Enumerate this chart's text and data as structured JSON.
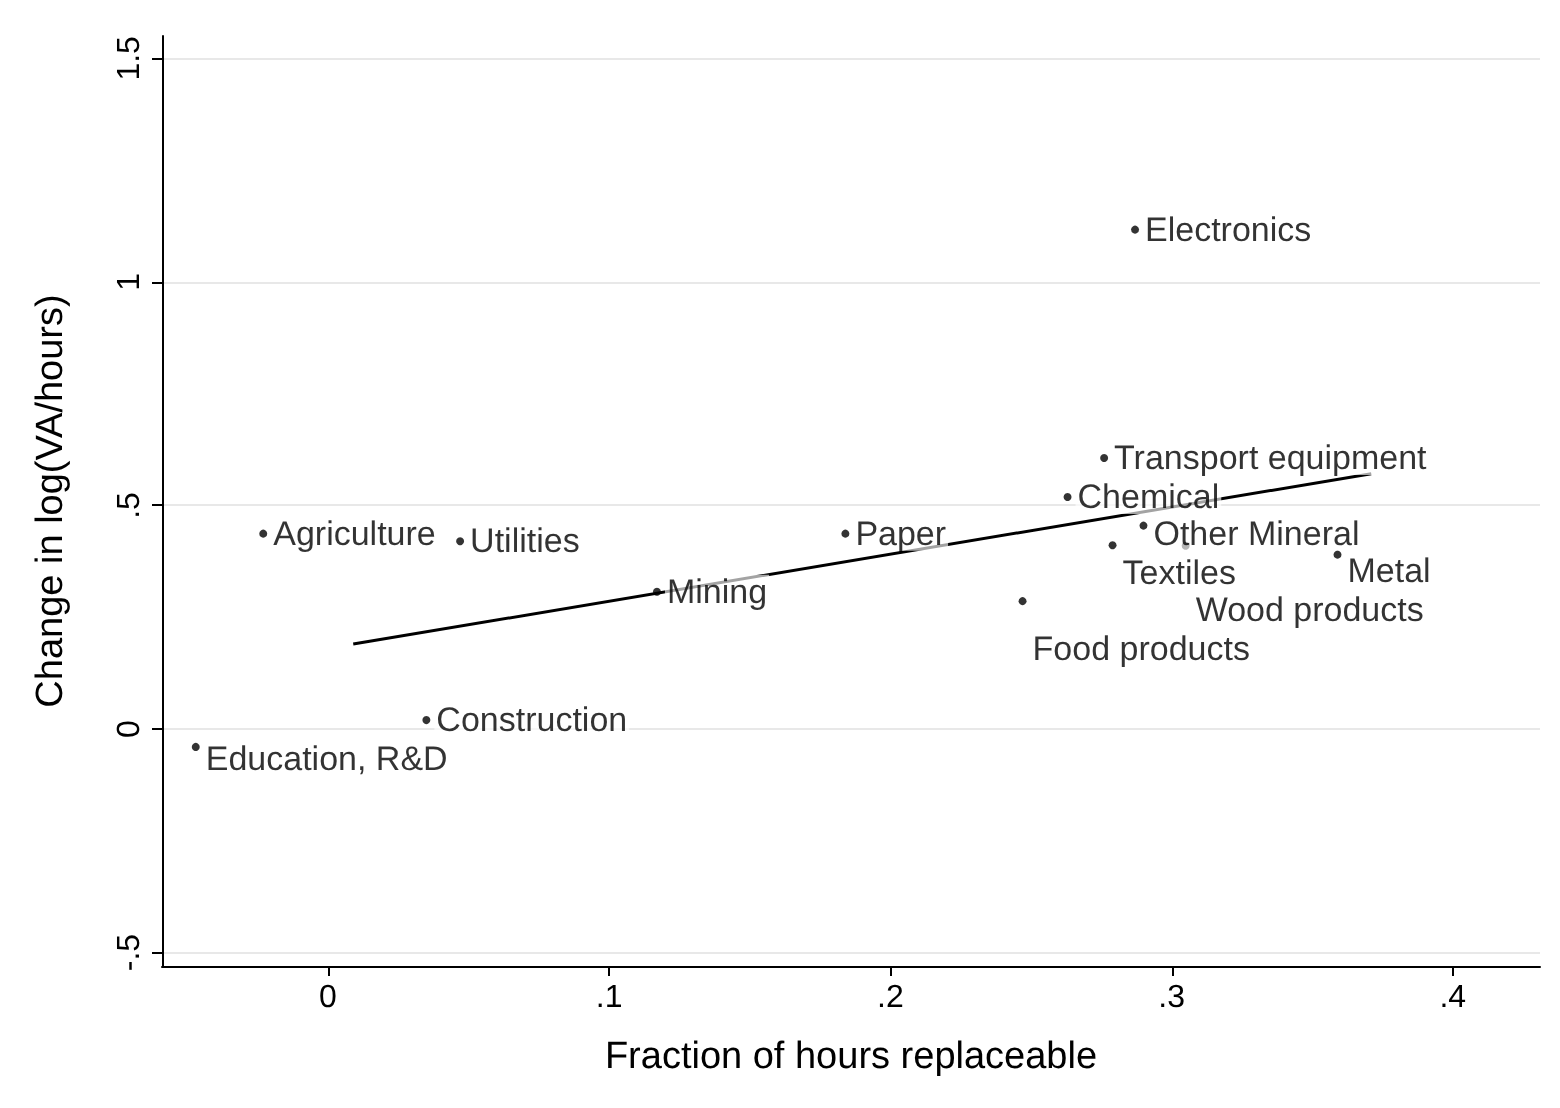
{
  "chart_data": {
    "type": "scatter",
    "xlabel": "Fraction of hours replaceable",
    "ylabel": "Change in log(VA/hours)",
    "xlim": [
      -0.059,
      0.431
    ],
    "ylim": [
      -0.53,
      1.55
    ],
    "xticks": [
      0,
      {
        "value": 0.1,
        "label": ".1"
      },
      {
        "value": 0.2,
        "label": ".2"
      },
      {
        "value": 0.3,
        "label": ".3"
      },
      {
        "value": 0.4,
        "label": ".4"
      }
    ],
    "yticks": [
      {
        "value": -0.5,
        "label": "-.5"
      },
      0,
      {
        "value": 0.5,
        "label": ".5"
      },
      1,
      1.5
    ],
    "grid": "y",
    "series": [
      {
        "marker": "circle",
        "color": "#000000",
        "x": [
          0.287,
          0.276,
          0.263,
          0.29,
          0.279,
          0.305,
          0.359,
          0.247,
          0.184,
          0.117,
          -0.023,
          0.047,
          0.035,
          -0.047
        ],
        "values": [
          1.117,
          0.606,
          0.519,
          0.455,
          0.411,
          0.41,
          0.39,
          0.286,
          0.437,
          0.307,
          0.437,
          0.42,
          0.02,
          -0.04
        ],
        "value_labels": [
          "Electronics",
          "Transport equipment",
          "Chemical",
          "Other Mineral",
          "Textiles",
          "Wood products",
          "Metal",
          "Food products",
          "Paper",
          "Mining",
          "Agriculture",
          "Utilities",
          "Construction",
          "Education, R&D"
        ]
      },
      {
        "type": "line",
        "marker": "none",
        "color": "#000000",
        "x": [
          0.009,
          0.371
        ],
        "values": [
          0.19,
          0.571
        ]
      }
    ]
  }
}
